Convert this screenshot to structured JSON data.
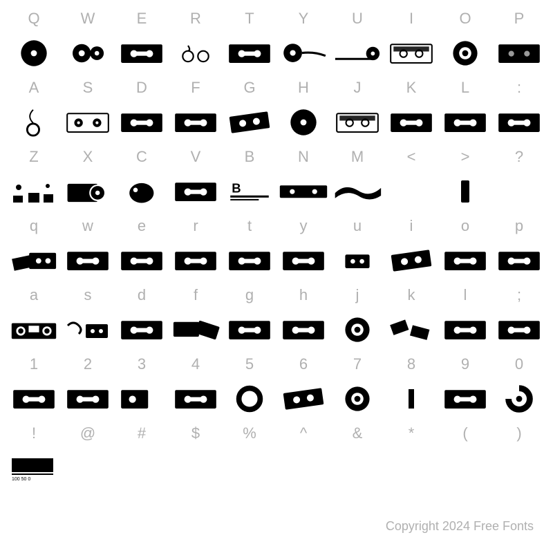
{
  "rows": [
    {
      "labels": [
        "Q",
        "W",
        "E",
        "R",
        "T",
        "Y",
        "U",
        "I",
        "O",
        "P"
      ],
      "glyphs": [
        "disc",
        "ring-pair",
        "cassette",
        "reel-small",
        "cassette",
        "reel-tail",
        "tape-run",
        "cassette-light",
        "wheel",
        "cassette-dark"
      ]
    },
    {
      "labels": [
        "A",
        "S",
        "D",
        "F",
        "G",
        "H",
        "J",
        "K",
        "L",
        ":"
      ],
      "glyphs": [
        "tape-curl",
        "cassette-open",
        "cassette",
        "cassette",
        "cassette-tilt",
        "disc",
        "cassette-light",
        "cassette",
        "cassette",
        "cassette"
      ]
    },
    {
      "labels": [
        "Z",
        "X",
        "C",
        "V",
        "B",
        "N",
        "M",
        "<",
        ">",
        "?"
      ],
      "glyphs": [
        "splatter",
        "disc-open",
        "blob",
        "cassette",
        "label-b",
        "cassette-wide",
        "swoosh",
        "",
        "stick",
        ""
      ]
    },
    {
      "labels": [
        "q",
        "w",
        "e",
        "r",
        "t",
        "y",
        "u",
        "i",
        "o",
        "p"
      ],
      "glyphs": [
        "cassette-pile",
        "cassette",
        "cassette",
        "cassette",
        "cassette",
        "cassette",
        "mini",
        "cassette-tilt",
        "cassette",
        "cassette"
      ]
    },
    {
      "labels": [
        "a",
        "s",
        "d",
        "f",
        "g",
        "h",
        "j",
        "k",
        "l",
        ";"
      ],
      "glyphs": [
        "boombox",
        "hand-tape",
        "cassette",
        "cassette-pair",
        "cassette",
        "cassette",
        "wheel",
        "cassette-scatter",
        "cassette",
        "cassette"
      ]
    },
    {
      "labels": [
        "1",
        "2",
        "3",
        "4",
        "5",
        "6",
        "7",
        "8",
        "9",
        "0"
      ],
      "glyphs": [
        "cassette",
        "cassette",
        "cassette-half",
        "cassette",
        "ring",
        "cassette-tilt",
        "wheel",
        "bar",
        "cassette",
        "ring-half"
      ]
    },
    {
      "labels": [
        "!",
        "@",
        "#",
        "$",
        "%",
        "^",
        "&",
        "*",
        "(",
        ")"
      ],
      "glyphs": [
        "meter",
        "",
        "",
        "",
        "",
        "",
        "",
        "",
        "",
        ""
      ]
    }
  ],
  "glyph_color": "#000000",
  "label_color": "#b0b0b0",
  "background_color": "#ffffff",
  "copyright": "Copyright 2024 Free Fonts"
}
